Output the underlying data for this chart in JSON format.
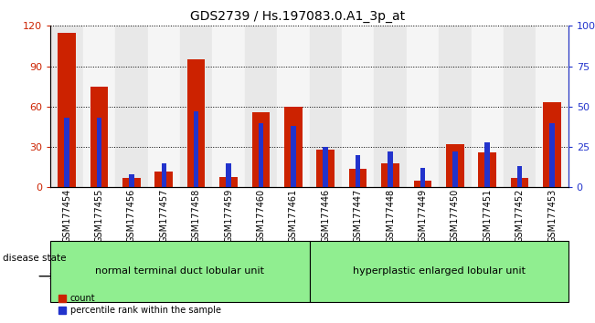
{
  "title": "GDS2739 / Hs.197083.0.A1_3p_at",
  "samples": [
    "GSM177454",
    "GSM177455",
    "GSM177456",
    "GSM177457",
    "GSM177458",
    "GSM177459",
    "GSM177460",
    "GSM177461",
    "GSM177446",
    "GSM177447",
    "GSM177448",
    "GSM177449",
    "GSM177450",
    "GSM177451",
    "GSM177452",
    "GSM177453"
  ],
  "count": [
    115,
    75,
    7,
    12,
    95,
    8,
    56,
    60,
    28,
    14,
    18,
    5,
    32,
    26,
    7,
    63
  ],
  "percentile": [
    43,
    43,
    8,
    15,
    47,
    15,
    40,
    38,
    25,
    20,
    22,
    12,
    22,
    28,
    13,
    40
  ],
  "group1_label": "normal terminal duct lobular unit",
  "group2_label": "hyperplastic enlarged lobular unit",
  "group1_count": 8,
  "group2_count": 8,
  "disease_state_label": "disease state",
  "ylim_left": [
    0,
    120
  ],
  "ylim_right": [
    0,
    100
  ],
  "yticks_left": [
    0,
    30,
    60,
    90,
    120
  ],
  "yticks_right": [
    0,
    25,
    50,
    75,
    100
  ],
  "ytick_labels_right": [
    "0",
    "25",
    "50",
    "75",
    "100%"
  ],
  "bar_color_count": "#cc2200",
  "bar_color_percentile": "#2233cc",
  "bg_col_even": "#e8e8e8",
  "bg_col_odd": "#f5f5f5",
  "bg_group": "#90EE90",
  "title_fontsize": 10,
  "tick_fontsize": 7,
  "group_fontsize": 8
}
